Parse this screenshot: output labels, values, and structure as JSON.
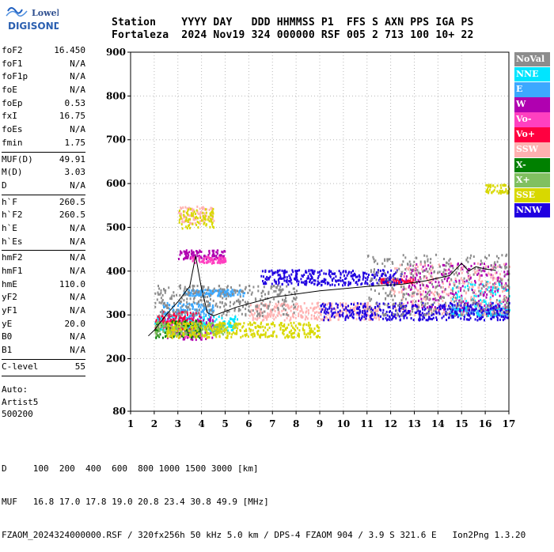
{
  "logo": {
    "line1": "Lowell",
    "line2": "DIGISONDE"
  },
  "header": {
    "line1": "Station    YYYY DAY   DDD HHMMSS P1  FFS S AXN PPS IGA PS",
    "line2": "Fortaleza  2024 Nov19 324 000000 RSF 005 2 713 100 10+ 22"
  },
  "params": [
    [
      {
        "k": "foF2",
        "v": "16.450"
      },
      {
        "k": "foF1",
        "v": "N/A"
      },
      {
        "k": "foF1p",
        "v": "N/A"
      },
      {
        "k": "foE",
        "v": "N/A"
      },
      {
        "k": "foEp",
        "v": "0.53"
      },
      {
        "k": "fxI",
        "v": "16.75"
      },
      {
        "k": "foEs",
        "v": "N/A"
      },
      {
        "k": "fmin",
        "v": "1.75"
      }
    ],
    [
      {
        "k": "MUF(D)",
        "v": "49.91"
      },
      {
        "k": "M(D)",
        "v": "3.03"
      },
      {
        "k": "D",
        "v": "N/A"
      }
    ],
    [
      {
        "k": "h`F",
        "v": "260.5"
      },
      {
        "k": "h`F2",
        "v": "260.5"
      },
      {
        "k": "h`E",
        "v": "N/A"
      },
      {
        "k": "h`Es",
        "v": "N/A"
      }
    ],
    [
      {
        "k": "hmF2",
        "v": "N/A"
      },
      {
        "k": "hmF1",
        "v": "N/A"
      },
      {
        "k": "hmE",
        "v": "110.0"
      },
      {
        "k": "yF2",
        "v": "N/A"
      },
      {
        "k": "yF1",
        "v": "N/A"
      },
      {
        "k": "yE",
        "v": "20.0"
      },
      {
        "k": "B0",
        "v": "N/A"
      },
      {
        "k": "B1",
        "v": "N/A"
      }
    ],
    [
      {
        "k": "C-level",
        "v": "55"
      }
    ]
  ],
  "auto": {
    "line1": "Auto:",
    "line2": "Artist5",
    "line3": "500200"
  },
  "legend": [
    {
      "label": "NoVal",
      "color": "#8c8c8c"
    },
    {
      "label": "NNE",
      "color": "#00e5ff"
    },
    {
      "label": "E",
      "color": "#3ca8ff"
    },
    {
      "label": "W",
      "color": "#b000b0"
    },
    {
      "label": "Vo-",
      "color": "#ff40c0"
    },
    {
      "label": "Vo+",
      "color": "#ff0040"
    },
    {
      "label": "SSW",
      "color": "#ffb0b0"
    },
    {
      "label": "X-",
      "color": "#008000"
    },
    {
      "label": "X+",
      "color": "#80c060"
    },
    {
      "label": "SSE",
      "color": "#d8d800"
    },
    {
      "label": "NNW",
      "color": "#2000e0"
    }
  ],
  "footer": {
    "line1": "D     100  200  400  600  800 1000 1500 3000 [km]",
    "line2": "MUF   16.8 17.0 17.8 19.0 20.8 23.4 30.8 49.9 [MHz]",
    "line3": "FZAOM_2024324000000.RSF / 320fx256h 50 kHz 5.0 km / DPS-4 FZAOM 904 / 3.9 S 321.6 E   Ion2Png 1.3.20"
  },
  "chart_data": {
    "type": "scatter",
    "xlim": [
      1,
      17
    ],
    "ylim": [
      80,
      900
    ],
    "x_ticks": [
      1,
      2,
      3,
      4,
      5,
      6,
      7,
      8,
      9,
      10,
      11,
      12,
      13,
      14,
      15,
      16,
      17
    ],
    "y_ticks": [
      80,
      200,
      300,
      400,
      500,
      600,
      700,
      800,
      900
    ],
    "grid": "dotted",
    "trace_line": {
      "x": [
        1.75,
        2.0,
        2.5,
        3.0,
        3.5,
        3.75,
        4.0,
        4.25,
        4.5,
        5.5,
        7.0,
        9.0,
        11.0,
        12.5,
        13.5,
        14.5,
        15.0,
        15.3,
        15.6,
        16.0,
        16.45
      ],
      "y": [
        252,
        265,
        300,
        330,
        365,
        435,
        360,
        305,
        298,
        318,
        340,
        355,
        365,
        370,
        378,
        390,
        418,
        400,
        410,
        405,
        402
      ]
    },
    "series": [
      {
        "name": "E",
        "color": "#3ca8ff",
        "clusters": [
          {
            "x": [
              3.2,
              5.8
            ],
            "y": [
              345,
              360
            ]
          },
          {
            "x": [
              2.3,
              4.5
            ],
            "y": [
              300,
              330
            ]
          },
          {
            "x": [
              14.5,
              17
            ],
            "y": [
              300,
              320
            ]
          }
        ]
      },
      {
        "name": "NNE",
        "color": "#00e5ff",
        "clusters": [
          {
            "x": [
              2.0,
              5.5
            ],
            "y": [
              265,
              300
            ]
          },
          {
            "x": [
              14.5,
              17
            ],
            "y": [
              300,
              380
            ]
          }
        ]
      },
      {
        "name": "W",
        "color": "#b000b0",
        "clusters": [
          {
            "x": [
              3.0,
              5.0
            ],
            "y": [
              430,
              450
            ]
          },
          {
            "x": [
              2.5,
              4.5
            ],
            "y": [
              245,
              300
            ]
          },
          {
            "x": [
              12.5,
              17
            ],
            "y": [
              310,
              420
            ]
          }
        ]
      },
      {
        "name": "Vo-",
        "color": "#ff40c0",
        "clusters": [
          {
            "x": [
              3.5,
              5.0
            ],
            "y": [
              420,
              435
            ]
          },
          {
            "x": [
              2.0,
              4.0
            ],
            "y": [
              250,
              290
            ]
          }
        ]
      },
      {
        "name": "Vo+",
        "color": "#ff0040",
        "clusters": [
          {
            "x": [
              2.0,
              4.0
            ],
            "y": [
              270,
              310
            ]
          },
          {
            "x": [
              11.5,
              13.0
            ],
            "y": [
              375,
              385
            ]
          }
        ]
      },
      {
        "name": "SSW",
        "color": "#ffb0b0",
        "clusters": [
          {
            "x": [
              3.0,
              4.5
            ],
            "y": [
              510,
              550
            ]
          },
          {
            "x": [
              6.0,
              11.5
            ],
            "y": [
              290,
              330
            ]
          },
          {
            "x": [
              12,
              17
            ],
            "y": [
              300,
              420
            ]
          }
        ]
      },
      {
        "name": "X-",
        "color": "#008000",
        "clusters": [
          {
            "x": [
              2.0,
              4.0
            ],
            "y": [
              250,
              290
            ]
          }
        ]
      },
      {
        "name": "X+",
        "color": "#80c060",
        "clusters": [
          {
            "x": [
              2.0,
              5.0
            ],
            "y": [
              255,
              285
            ]
          }
        ]
      },
      {
        "name": "SSE",
        "color": "#d8d800",
        "clusters": [
          {
            "x": [
              2.5,
              9.0
            ],
            "y": [
              250,
              285
            ]
          },
          {
            "x": [
              3.0,
              4.5
            ],
            "y": [
              500,
              545
            ]
          },
          {
            "x": [
              16,
              17
            ],
            "y": [
              580,
              600
            ]
          }
        ]
      },
      {
        "name": "NNW",
        "color": "#2000e0",
        "clusters": [
          {
            "x": [
              6.5,
              12.5
            ],
            "y": [
              370,
              405
            ]
          },
          {
            "x": [
              9,
              17
            ],
            "y": [
              290,
              330
            ]
          }
        ]
      },
      {
        "name": "NoVal",
        "color": "#8c8c8c",
        "clusters": [
          {
            "x": [
              2.0,
              8.0
            ],
            "y": [
              300,
              370
            ]
          },
          {
            "x": [
              11,
              17
            ],
            "y": [
              300,
              440
            ]
          }
        ]
      }
    ]
  }
}
